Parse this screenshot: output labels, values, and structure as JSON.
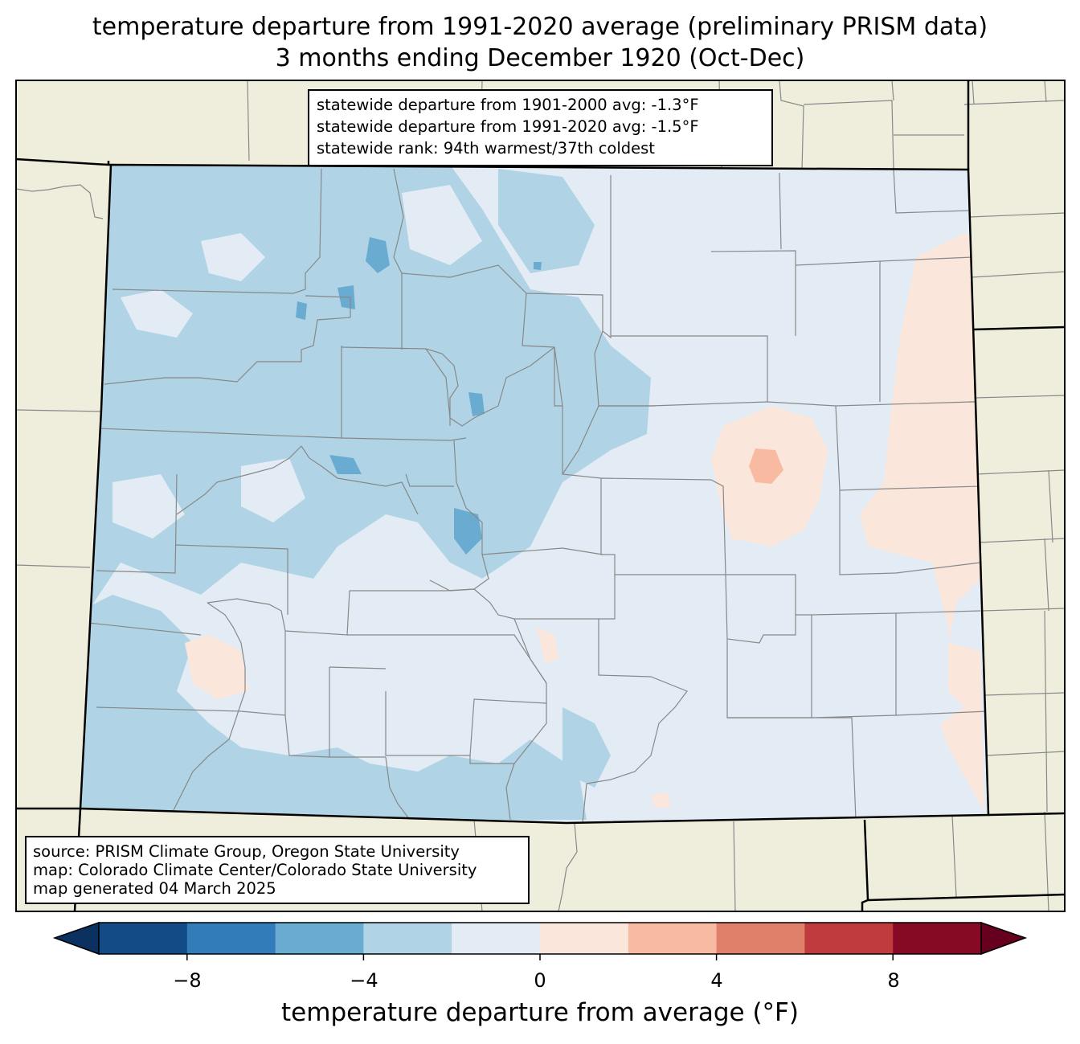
{
  "title": {
    "line1": "temperature departure from 1991-2020 average (preliminary PRISM data)",
    "line2": "3 months ending December 1920 (Oct-Dec)"
  },
  "stats": {
    "line1": "statewide departure from 1901-2000 avg: -1.3°F",
    "line2": "statewide departure from 1991-2020 avg: -1.5°F",
    "line3": "statewide rank: 94th warmest/37th coldest"
  },
  "source": {
    "line1": "source: PRISM Climate Group, Oregon State University",
    "line2": "map: Colorado Climate Center/Colorado State University",
    "line3": "map generated 04 March 2025"
  },
  "colorbar": {
    "label": "temperature departure from average (°F)",
    "ticks": [
      "−8",
      "−4",
      "0",
      "4",
      "8"
    ],
    "bins": [
      {
        "range": "-10 to -8",
        "color": "#134b87"
      },
      {
        "range": "-8 to -6",
        "color": "#327cba"
      },
      {
        "range": "-6 to -4",
        "color": "#6aabd2"
      },
      {
        "range": "-4 to -2",
        "color": "#b0d4e6"
      },
      {
        "range": "-2 to 0",
        "color": "#e3ecf4"
      },
      {
        "range": "0 to 2",
        "color": "#fbe6dc"
      },
      {
        "range": "2 to 4",
        "color": "#f8bba1"
      },
      {
        "range": "4 to 6",
        "color": "#e0806a"
      },
      {
        "range": "6 to 8",
        "color": "#c03b3e"
      },
      {
        "range": "8 to 10",
        "color": "#870a24"
      }
    ],
    "under_color": "#0a315f",
    "over_color": "#67001f"
  },
  "colors": {
    "land_background": "#efeedc",
    "county_lines": "#888888",
    "state_lines": "#000000"
  }
}
